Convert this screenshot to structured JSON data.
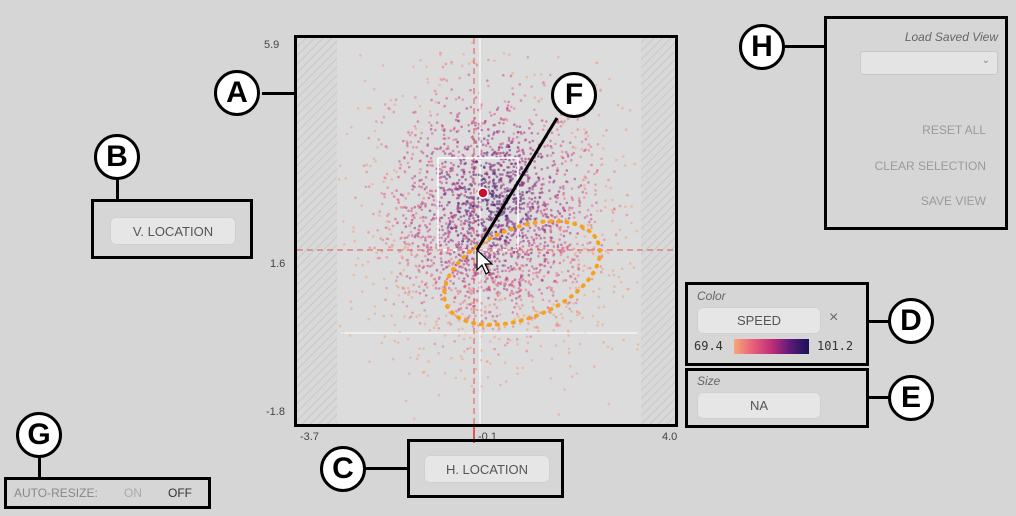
{
  "plot": {
    "y_ticks": [
      "5.9",
      "1.6",
      "-1.8"
    ],
    "x_ticks": [
      "-3.7",
      "-0.1",
      "4.0"
    ]
  },
  "callouts": {
    "a": "A",
    "b": "B",
    "c": "C",
    "d": "D",
    "e": "E",
    "f": "F",
    "g": "G",
    "h": "H"
  },
  "axes": {
    "v_location_label": "V. LOCATION",
    "h_location_label": "H. LOCATION"
  },
  "color_panel": {
    "title": "Color",
    "field": "SPEED",
    "remove_glyph": "×",
    "min": "69.4",
    "max": "101.2"
  },
  "size_panel": {
    "title": "Size",
    "field": "NA"
  },
  "auto_resize": {
    "label": "AUTO-RESIZE:",
    "on": "ON",
    "off": "OFF"
  },
  "view_panel": {
    "title": "Load Saved View",
    "reset_all": "RESET ALL",
    "clear_selection": "CLEAR SELECTION",
    "save_view": "SAVE VIEW"
  },
  "colors": {
    "background": "#d6d6d6",
    "gradient_start": "#f6a878",
    "gradient_mid": "#c02d7a",
    "gradient_end": "#1a1158",
    "selection_lasso": "#f7a21b",
    "crosshair": "#e05555"
  }
}
